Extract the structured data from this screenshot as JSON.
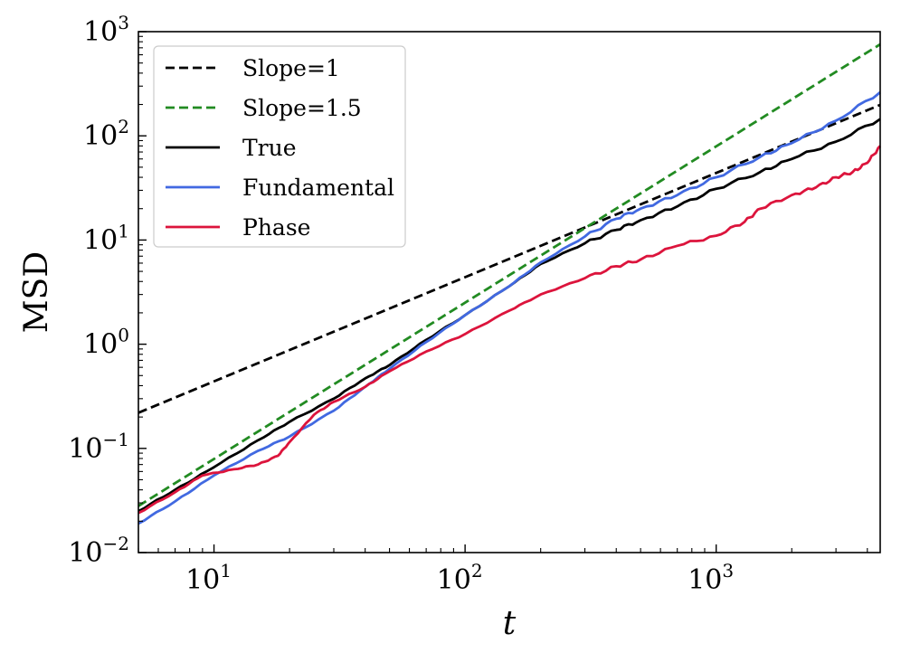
{
  "chart_data": {
    "type": "line",
    "title": "",
    "xlabel": "t",
    "ylabel": "MSD",
    "xscale": "log",
    "yscale": "log",
    "xlim": [
      5,
      4500
    ],
    "ylim": [
      0.01,
      1000
    ],
    "x_ticks": [
      {
        "value": 10,
        "base": "10",
        "exp": "1"
      },
      {
        "value": 100,
        "base": "10",
        "exp": "2"
      },
      {
        "value": 1000,
        "base": "10",
        "exp": "3"
      }
    ],
    "y_ticks": [
      {
        "value": 0.01,
        "base": "10",
        "exp": "−2"
      },
      {
        "value": 0.1,
        "base": "10",
        "exp": "−1"
      },
      {
        "value": 1,
        "base": "10",
        "exp": "0"
      },
      {
        "value": 10,
        "base": "10",
        "exp": "1"
      },
      {
        "value": 100,
        "base": "10",
        "exp": "2"
      },
      {
        "value": 1000,
        "base": "10",
        "exp": "3"
      }
    ],
    "legend_position": "top-left",
    "series": [
      {
        "name": "Slope=1",
        "color": "#000000",
        "dash": true,
        "x": [
          5,
          4500
        ],
        "y": [
          0.22,
          198
        ]
      },
      {
        "name": "Slope=1.5",
        "color": "#228b22",
        "dash": true,
        "x": [
          5,
          4500
        ],
        "y": [
          0.028,
          756
        ]
      },
      {
        "name": "True",
        "color": "#000000",
        "dash": false,
        "x": [
          5,
          7,
          10,
          15,
          20,
          30,
          40,
          50,
          70,
          100,
          150,
          200,
          300,
          400,
          500,
          700,
          1000,
          1500,
          2000,
          3000,
          4500
        ],
        "y": [
          0.025,
          0.04,
          0.066,
          0.12,
          0.18,
          0.3,
          0.47,
          0.63,
          1.1,
          1.9,
          3.6,
          5.9,
          9.3,
          12.5,
          15.5,
          21,
          31,
          45,
          60,
          88,
          145
        ]
      },
      {
        "name": "Fundamental",
        "color": "#4169e1",
        "dash": false,
        "x": [
          5,
          7,
          10,
          15,
          20,
          30,
          40,
          50,
          70,
          100,
          150,
          200,
          300,
          400,
          500,
          700,
          1000,
          1500,
          2000,
          3000,
          4500
        ],
        "y": [
          0.019,
          0.031,
          0.055,
          0.095,
          0.13,
          0.23,
          0.39,
          0.58,
          1.05,
          1.9,
          3.6,
          6.1,
          10.8,
          16,
          20,
          27,
          40,
          63,
          85,
          140,
          262
        ]
      },
      {
        "name": "Phase",
        "color": "#dc143c",
        "dash": false,
        "x": [
          5,
          7,
          9,
          12,
          15,
          18,
          20,
          25,
          30,
          40,
          50,
          70,
          100,
          150,
          200,
          300,
          400,
          500,
          700,
          1000,
          1300,
          1500,
          2000,
          2500,
          3000,
          3500,
          4000,
          4500
        ],
        "y": [
          0.024,
          0.038,
          0.055,
          0.063,
          0.07,
          0.085,
          0.115,
          0.21,
          0.28,
          0.39,
          0.55,
          0.85,
          1.25,
          2.1,
          3.0,
          4.3,
          5.6,
          6.5,
          8.8,
          11,
          15,
          20,
          27,
          32,
          40,
          45,
          55,
          80
        ]
      }
    ]
  }
}
